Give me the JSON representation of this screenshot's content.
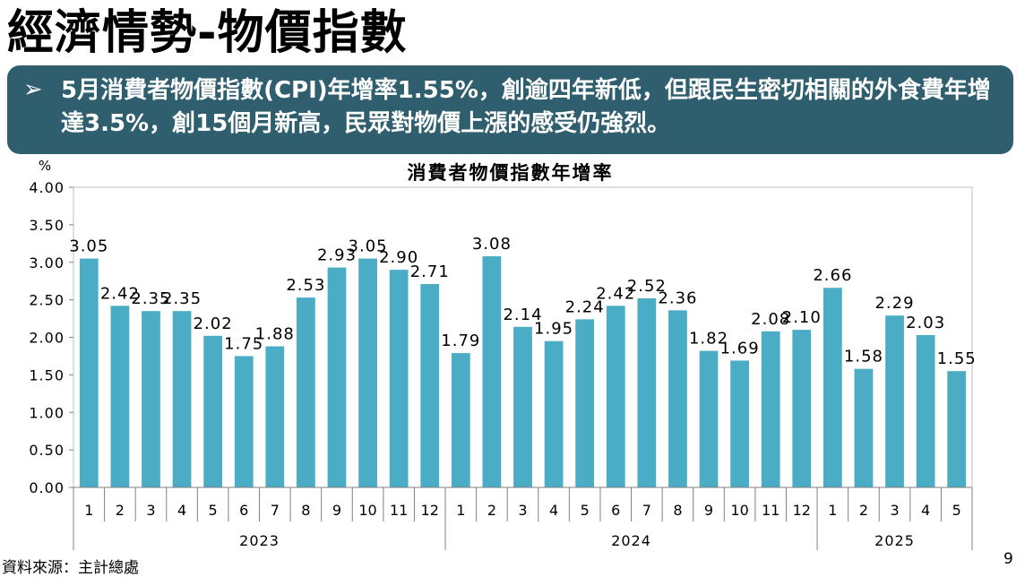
{
  "slide": {
    "title": "經濟情勢-物價指數",
    "callout_bullet": "➢",
    "callout_text": "5月消費者物價指數(CPI)年增率1.55%，創逾四年新低，但跟民生密切相關的外食費年增達3.5%，創15個月新高，民眾對物價上漲的感受仍強烈。",
    "source": "資料來源：主計總處",
    "page_number": "9"
  },
  "chart_data": {
    "type": "bar",
    "title": "消費者物價指數年增率",
    "ylabel": "%",
    "ylim": [
      0,
      4
    ],
    "yticks": [
      "0.00",
      "0.50",
      "1.00",
      "1.50",
      "2.00",
      "2.50",
      "3.00",
      "3.50",
      "4.00"
    ],
    "bar_color": "#4bacc6",
    "grid": false,
    "groups": [
      {
        "label": "2023",
        "months": [
          "1",
          "2",
          "3",
          "4",
          "5",
          "6",
          "7",
          "8",
          "9",
          "10",
          "11",
          "12"
        ]
      },
      {
        "label": "2024",
        "months": [
          "1",
          "2",
          "3",
          "4",
          "5",
          "6",
          "7",
          "8",
          "9",
          "10",
          "11",
          "12"
        ]
      },
      {
        "label": "2025",
        "months": [
          "1",
          "2",
          "3",
          "4",
          "5"
        ]
      }
    ],
    "values": [
      3.05,
      2.42,
      2.35,
      2.35,
      2.02,
      1.75,
      1.88,
      2.53,
      2.93,
      3.05,
      2.9,
      2.71,
      1.79,
      3.08,
      2.14,
      1.95,
      2.24,
      2.42,
      2.52,
      2.36,
      1.82,
      1.69,
      2.08,
      2.1,
      2.66,
      1.58,
      2.29,
      2.03,
      1.55
    ],
    "data_labels": [
      "3.05",
      "2.42",
      "2.35",
      "2.35",
      "2.02",
      "1.75",
      "1.88",
      "2.53",
      "2.93",
      "3.05",
      "2.90",
      "2.71",
      "1.79",
      "3.08",
      "2.14",
      "1.95",
      "2.24",
      "2.42",
      "2.52",
      "2.36",
      "1.82",
      "1.69",
      "2.08",
      "2.10",
      "2.66",
      "1.58",
      "2.29",
      "2.03",
      "1.55"
    ]
  }
}
